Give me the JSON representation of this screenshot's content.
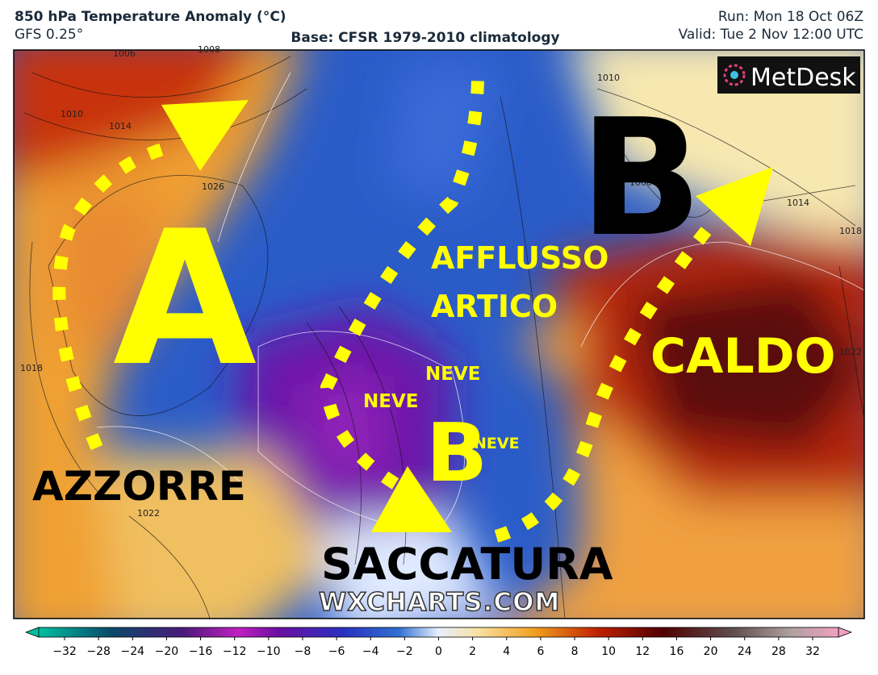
{
  "header": {
    "title": "850 hPa Temperature Anomaly (°C)",
    "model": "GFS 0.25°",
    "base": "Base: CFSR 1979-2010 climatology",
    "run": "Run: Mon 18 Oct 06Z",
    "valid": "Valid: Tue 2 Nov 12:00 UTC"
  },
  "logo": "MetDesk",
  "watermark": "WXCHARTS.COM",
  "map_labels": {
    "high": "A",
    "low_north": "B",
    "flow_1": "AFFLUSSO",
    "flow_2": "ARTICO",
    "warm": "CALDO",
    "snow_1": "NEVE",
    "snow_2": "NEVE",
    "snow_3": "NEVE",
    "low_south": "B",
    "azores": "AZZORRE",
    "trough": "SACCATURA"
  },
  "isobar_labels": [
    "1006",
    "1008",
    "1010",
    "1014",
    "1026",
    "1018",
    "1022",
    "1010",
    "1006",
    "1014",
    "1018",
    "1022"
  ],
  "colorbar": {
    "ticks": [
      {
        "value": -32,
        "label": "−32"
      },
      {
        "value": -28,
        "label": "−28"
      },
      {
        "value": -24,
        "label": "−24"
      },
      {
        "value": -20,
        "label": "−20"
      },
      {
        "value": -16,
        "label": "−16"
      },
      {
        "value": -12,
        "label": "−12"
      },
      {
        "value": -10,
        "label": "−10"
      },
      {
        "value": -8,
        "label": "−8"
      },
      {
        "value": -6,
        "label": "−6"
      },
      {
        "value": -4,
        "label": "−4"
      },
      {
        "value": -2,
        "label": "−2"
      },
      0,
      2,
      4,
      6,
      8,
      10,
      12,
      16,
      20,
      24,
      28,
      32
    ]
  }
}
